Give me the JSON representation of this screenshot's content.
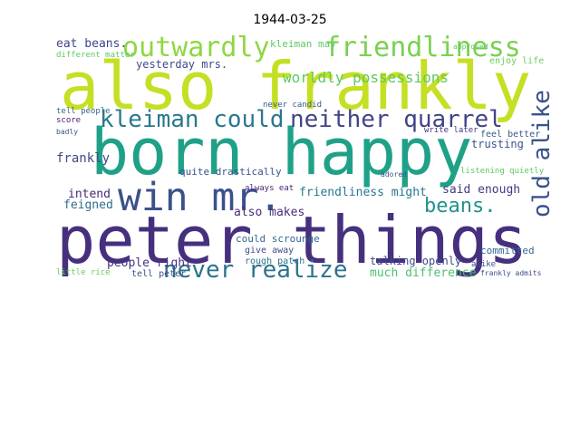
{
  "chart_data": {
    "type": "wordcloud",
    "title": "1944-03-25",
    "words": [
      {
        "text": "peter things",
        "color": "#46307e"
      },
      {
        "text": "also frankly",
        "color": "#c5df23"
      },
      {
        "text": "born happy",
        "color": "#1fa187"
      },
      {
        "text": "win mr.",
        "color": "#3b518b"
      },
      {
        "text": "outwardly",
        "color": "#8fd744"
      },
      {
        "text": "friendliness",
        "color": "#7ad151"
      },
      {
        "text": "kleiman could",
        "color": "#2a788e"
      },
      {
        "text": "neither quarrel",
        "color": "#414487"
      },
      {
        "text": "never realize",
        "color": "#2c728e"
      },
      {
        "text": "old alike",
        "color": "#3b518b"
      },
      {
        "text": "beans.",
        "color": "#21918c"
      },
      {
        "text": "eat beans.",
        "color": "#414487"
      },
      {
        "text": "yesterday mrs.",
        "color": "#3e4a89"
      },
      {
        "text": "worldly possessions",
        "color": "#5ec962"
      },
      {
        "text": "kleiman may",
        "color": "#5ec962"
      },
      {
        "text": "trusting",
        "color": "#3b528b"
      },
      {
        "text": "feel better",
        "color": "#38588c"
      },
      {
        "text": "frankly",
        "color": "#3e4989"
      },
      {
        "text": "intend",
        "color": "#482878"
      },
      {
        "text": "feigned",
        "color": "#2e6e8e"
      },
      {
        "text": "quite drastically",
        "color": "#3b528b"
      },
      {
        "text": "friendliness might",
        "color": "#2a788e"
      },
      {
        "text": "said enough",
        "color": "#443983"
      },
      {
        "text": "also makes",
        "color": "#472d7b"
      },
      {
        "text": "people right",
        "color": "#46337f"
      },
      {
        "text": "talking openly",
        "color": "#3e4a89"
      },
      {
        "text": "much difference",
        "color": "#4ac16d"
      },
      {
        "text": "committed",
        "color": "#31688e"
      },
      {
        "text": "tell peter",
        "color": "#3b528b"
      },
      {
        "text": "could scrounge",
        "color": "#31688e"
      },
      {
        "text": "give away",
        "color": "#3e4a89"
      },
      {
        "text": "rough patch",
        "color": "#2c728e"
      },
      {
        "text": "always eat",
        "color": "#482475"
      },
      {
        "text": "enjoy life",
        "color": "#6ccd5a"
      },
      {
        "text": "different matter",
        "color": "#5ec962"
      },
      {
        "text": "little rice",
        "color": "#6ccd5a"
      },
      {
        "text": "score",
        "color": "#482173"
      },
      {
        "text": "tell people",
        "color": "#31688e"
      },
      {
        "text": "badly",
        "color": "#3b528b"
      },
      {
        "text": "listening quietly",
        "color": "#5ec962"
      },
      {
        "text": "alike",
        "color": "#3b528b"
      },
      {
        "text": "frankly admits",
        "color": "#3e4989"
      },
      {
        "text": "write later",
        "color": "#453581"
      },
      {
        "text": "never candid",
        "color": "#38588c"
      },
      {
        "text": "approved",
        "color": "#5ec962"
      },
      {
        "text": "adored",
        "color": "#3b528b"
      }
    ]
  }
}
